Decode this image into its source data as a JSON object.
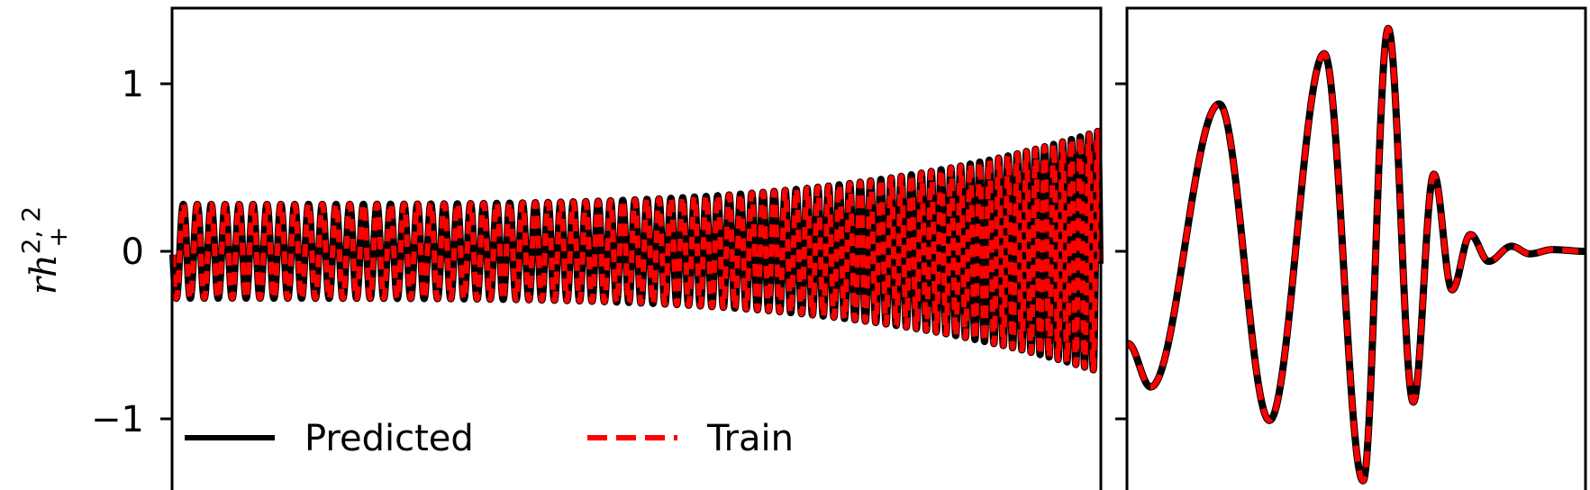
{
  "chart_data": [
    {
      "type": "line",
      "panel": "left",
      "title": "",
      "xlabel": "",
      "ylabel": "rh",
      "ylabel_superscript": "2, 2",
      "ylabel_subscript": "+",
      "ylim": [
        -1.4,
        1.45
      ],
      "y_ticks": [
        {
          "value": 1,
          "label": "1"
        },
        {
          "value": 0,
          "label": "0"
        },
        {
          "value": -1,
          "label": "−1"
        }
      ],
      "x_ticks_visible": false,
      "description_of_signal": "inspiral: nearly constant-amplitude oscillation growing toward the right",
      "envelope": {
        "start_amplitude": 0.28,
        "end_amplitude": 0.72
      },
      "cycles": 85,
      "series": [
        {
          "name": "Predicted",
          "color": "#000000",
          "style": "solid"
        },
        {
          "name": "Train",
          "color": "#ff0000",
          "style": "dashed"
        }
      ],
      "legend": {
        "placement": "lower-left",
        "columns": 2
      }
    },
    {
      "type": "line",
      "panel": "right",
      "title": "",
      "xlabel": "",
      "ylim": [
        -1.4,
        1.45
      ],
      "y_ticks": [
        {
          "value": 1,
          "label": ""
        },
        {
          "value": 0,
          "label": ""
        },
        {
          "value": -1,
          "label": ""
        }
      ],
      "x_ticks_visible": false,
      "description_of_signal": "merger and ringdown",
      "extrema": [
        {
          "t": 0.0,
          "y": -0.55
        },
        {
          "t": 0.05,
          "y": -0.81
        },
        {
          "t": 0.2,
          "y": 0.88
        },
        {
          "t": 0.31,
          "y": -1.01
        },
        {
          "t": 0.43,
          "y": 1.18
        },
        {
          "t": 0.515,
          "y": -1.37
        },
        {
          "t": 0.57,
          "y": 1.33
        },
        {
          "t": 0.625,
          "y": -0.9
        },
        {
          "t": 0.67,
          "y": 0.46
        },
        {
          "t": 0.71,
          "y": -0.23
        },
        {
          "t": 0.75,
          "y": 0.1
        },
        {
          "t": 0.79,
          "y": -0.06
        },
        {
          "t": 0.84,
          "y": 0.03
        },
        {
          "t": 0.88,
          "y": -0.015
        },
        {
          "t": 0.93,
          "y": 0.01
        },
        {
          "t": 1.0,
          "y": 0.0
        }
      ],
      "series": [
        {
          "name": "Predicted",
          "color": "#000000",
          "style": "solid"
        },
        {
          "name": "Train",
          "color": "#ff0000",
          "style": "dashed"
        }
      ]
    }
  ]
}
